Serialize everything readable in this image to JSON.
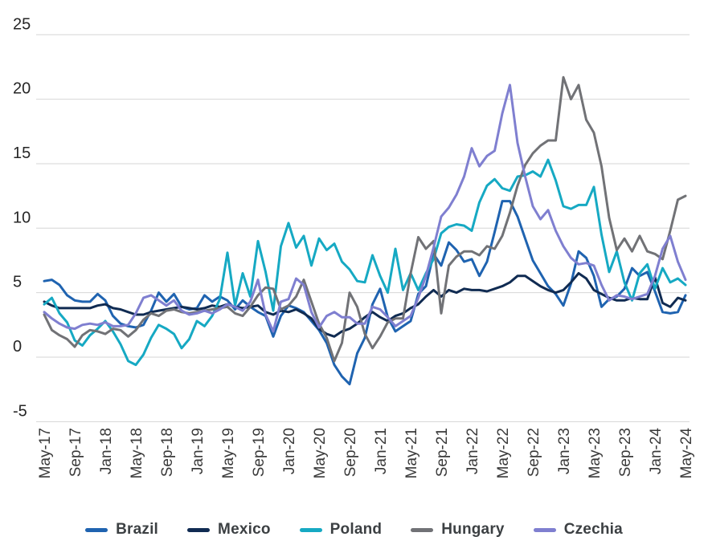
{
  "chart_data": {
    "type": "line",
    "title": "",
    "xlabel": "",
    "ylabel": "",
    "ylim": [
      -5,
      25
    ],
    "y_ticks": [
      25,
      20,
      15,
      10,
      5,
      0,
      -5
    ],
    "grid": "horizontal",
    "legend_position": "bottom",
    "x_frequency": "monthly",
    "x_range": [
      "May-17",
      "May-24"
    ],
    "x_tick_labels": [
      "May-17",
      "Sep-17",
      "Jan-18",
      "May-18",
      "Sep-18",
      "Jan-19",
      "May-19",
      "Sep-19",
      "Jan-20",
      "May-20",
      "Sep-20",
      "Jan-21",
      "May-21",
      "Sep-21",
      "Jan-22",
      "May-22",
      "Sep-22",
      "Jan-23",
      "May-23",
      "Sep-23",
      "Jan-24",
      "May-24"
    ],
    "x_tick_month_step": 4,
    "series": [
      {
        "name": "Brazil",
        "color": "#1f63b0",
        "values": [
          5.9,
          6.0,
          5.6,
          4.8,
          4.4,
          4.3,
          4.3,
          4.9,
          4.4,
          3.2,
          2.6,
          2.4,
          2.3,
          2.5,
          3.6,
          5.0,
          4.3,
          4.9,
          3.9,
          3.7,
          3.8,
          4.8,
          4.3,
          4.7,
          4.4,
          3.7,
          4.4,
          3.9,
          3.5,
          3.2,
          1.6,
          3.2,
          4.0,
          3.8,
          3.5,
          2.8,
          2.1,
          1.1,
          -0.6,
          -1.5,
          -2.1,
          0.3,
          1.5,
          4.1,
          5.3,
          3.1,
          2.0,
          2.4,
          2.8,
          4.9,
          5.5,
          8.0,
          7.1,
          8.9,
          8.3,
          7.4,
          7.6,
          6.3,
          7.4,
          9.7,
          12.1,
          12.1,
          10.9,
          9.2,
          7.5,
          6.5,
          5.5,
          4.9,
          4.0,
          5.7,
          8.2,
          7.7,
          6.3,
          3.9,
          4.5,
          4.7,
          5.3,
          6.9,
          6.3,
          6.6,
          5.1,
          3.5,
          3.4,
          3.5,
          4.8
        ]
      },
      {
        "name": "Mexico",
        "color": "#102b52",
        "values": [
          4.3,
          4.0,
          3.8,
          3.8,
          3.8,
          3.8,
          3.8,
          4.0,
          4.1,
          3.8,
          3.7,
          3.5,
          3.3,
          3.3,
          3.5,
          3.6,
          3.7,
          3.8,
          3.9,
          3.8,
          3.7,
          3.8,
          4.0,
          3.9,
          4.1,
          3.9,
          3.8,
          3.9,
          4.0,
          3.5,
          3.3,
          3.6,
          3.5,
          3.7,
          3.4,
          3.0,
          2.2,
          1.8,
          1.6,
          2.0,
          2.2,
          2.6,
          3.1,
          3.5,
          3.1,
          2.8,
          3.2,
          3.4,
          3.8,
          4.1,
          4.7,
          5.2,
          4.7,
          5.2,
          5.0,
          5.3,
          5.2,
          5.2,
          5.1,
          5.3,
          5.5,
          5.8,
          6.3,
          6.3,
          5.9,
          5.5,
          5.2,
          5.0,
          5.2,
          5.8,
          6.5,
          6.1,
          5.2,
          4.9,
          4.6,
          4.4,
          4.4,
          4.6,
          4.5,
          4.5,
          6.2,
          4.2,
          3.9,
          4.6,
          4.4
        ]
      },
      {
        "name": "Poland",
        "color": "#16a9c3",
        "values": [
          4.1,
          4.6,
          3.4,
          2.7,
          1.3,
          0.9,
          1.7,
          2.2,
          2.8,
          2.0,
          1.0,
          -0.3,
          -0.6,
          0.2,
          1.5,
          2.5,
          2.2,
          1.8,
          0.7,
          1.4,
          2.8,
          2.4,
          3.2,
          4.5,
          8.1,
          4.0,
          6.5,
          4.7,
          9.0,
          6.6,
          3.6,
          8.6,
          10.4,
          8.5,
          9.4,
          7.1,
          9.2,
          8.3,
          8.8,
          7.4,
          6.8,
          5.9,
          5.8,
          7.9,
          6.3,
          5.0,
          8.4,
          5.2,
          6.5,
          5.2,
          6.5,
          7.6,
          9.6,
          10.1,
          10.3,
          10.2,
          9.8,
          12.0,
          13.3,
          13.8,
          13.1,
          12.9,
          14.0,
          14.1,
          14.4,
          14.0,
          15.3,
          13.7,
          11.7,
          11.5,
          11.8,
          11.8,
          13.2,
          9.5,
          6.6,
          8.2,
          5.8,
          4.4,
          6.5,
          7.2,
          5.3,
          6.9,
          5.8,
          6.1,
          5.6
        ]
      },
      {
        "name": "Hungary",
        "color": "#717276",
        "values": [
          3.3,
          2.1,
          1.7,
          1.4,
          0.8,
          1.7,
          2.1,
          2.0,
          1.8,
          2.2,
          2.1,
          1.6,
          2.1,
          2.9,
          3.4,
          3.2,
          3.6,
          3.7,
          3.5,
          3.4,
          3.5,
          3.6,
          3.7,
          3.8,
          3.9,
          3.4,
          3.2,
          3.9,
          4.8,
          5.4,
          5.3,
          3.7,
          4.0,
          4.7,
          6.0,
          4.3,
          2.6,
          1.5,
          -0.3,
          1.1,
          5.0,
          3.9,
          1.8,
          0.7,
          1.6,
          2.7,
          3.0,
          3.0,
          6.5,
          9.3,
          8.4,
          9.0,
          3.4,
          7.1,
          7.8,
          8.2,
          8.2,
          7.9,
          8.6,
          8.4,
          9.4,
          11.2,
          13.3,
          14.9,
          15.8,
          16.4,
          16.8,
          16.8,
          21.7,
          20.0,
          21.1,
          18.4,
          17.4,
          14.8,
          10.8,
          8.3,
          9.2,
          8.2,
          9.4,
          8.2,
          8.0,
          7.6,
          9.8,
          12.2,
          12.5
        ]
      },
      {
        "name": "Czechia",
        "color": "#7f7fd0",
        "values": [
          3.5,
          3.0,
          2.6,
          2.3,
          2.2,
          2.5,
          2.6,
          2.5,
          2.7,
          2.4,
          2.4,
          2.5,
          3.4,
          4.6,
          4.8,
          4.4,
          4.0,
          4.4,
          3.6,
          3.3,
          3.4,
          3.6,
          3.4,
          3.7,
          4.1,
          3.9,
          3.6,
          4.3,
          6.0,
          3.3,
          2.0,
          4.3,
          4.5,
          6.1,
          5.6,
          3.5,
          2.3,
          3.2,
          3.5,
          3.1,
          3.1,
          2.6,
          2.6,
          3.9,
          3.7,
          3.1,
          2.4,
          2.8,
          3.2,
          4.6,
          6.3,
          8.5,
          10.9,
          11.6,
          12.6,
          14.0,
          16.2,
          14.8,
          15.6,
          16.0,
          18.9,
          21.1,
          16.6,
          14.0,
          11.7,
          10.7,
          11.4,
          9.8,
          8.6,
          7.7,
          7.2,
          7.3,
          7.1,
          5.6,
          4.4,
          4.8,
          4.7,
          4.5,
          4.7,
          4.9,
          6.3,
          8.4,
          9.4,
          7.4,
          6.0
        ]
      }
    ]
  },
  "style": {
    "gridline_color": "#d6d6d6",
    "background_color": "#ffffff",
    "axis_label_color": "#3a3a3a",
    "line_width": 3
  }
}
